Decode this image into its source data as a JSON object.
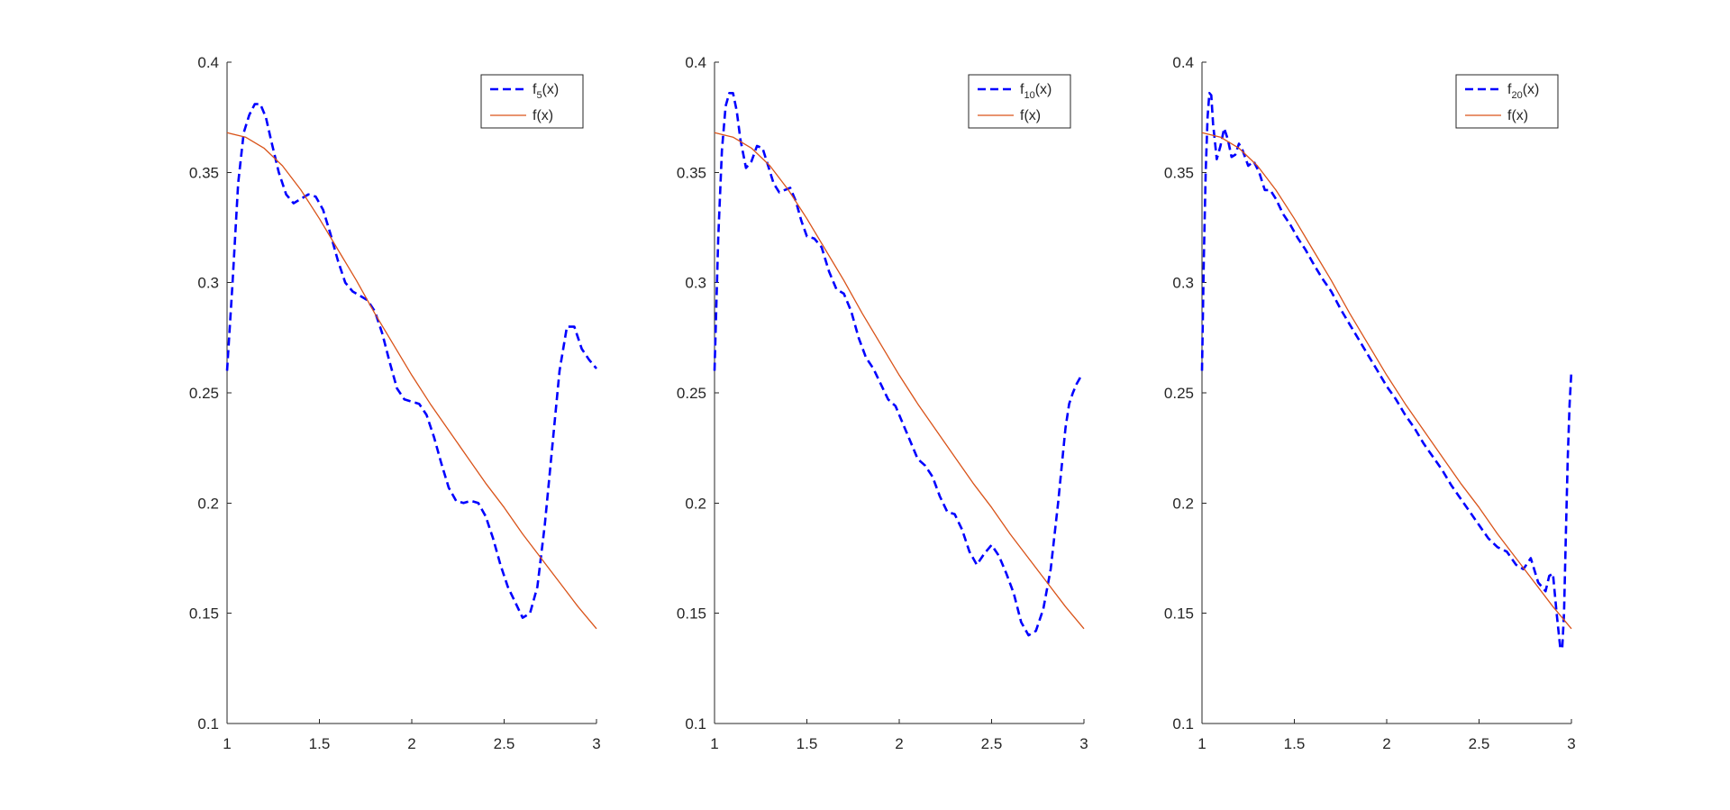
{
  "chart_data": [
    {
      "type": "line",
      "xlim": [
        1,
        3
      ],
      "ylim": [
        0.1,
        0.4
      ],
      "xticks": [
        "1",
        "1.5",
        "2",
        "2.5",
        "3"
      ],
      "yticks": [
        "0.1",
        "0.15",
        "0.2",
        "0.25",
        "0.3",
        "0.35",
        "0.4"
      ],
      "grid": false,
      "legend_position": "top-right",
      "series": [
        {
          "name": "f5(x)",
          "label_main": "f",
          "label_sub": "5",
          "label_tail": "(x)",
          "color": "#0000ff",
          "style": "dashed",
          "x": [
            1.0,
            1.03,
            1.06,
            1.09,
            1.12,
            1.15,
            1.18,
            1.21,
            1.24,
            1.28,
            1.32,
            1.36,
            1.4,
            1.44,
            1.48,
            1.52,
            1.56,
            1.6,
            1.64,
            1.68,
            1.72,
            1.76,
            1.8,
            1.84,
            1.88,
            1.92,
            1.96,
            2.0,
            2.04,
            2.08,
            2.12,
            2.16,
            2.2,
            2.24,
            2.28,
            2.32,
            2.36,
            2.4,
            2.44,
            2.48,
            2.52,
            2.56,
            2.6,
            2.64,
            2.68,
            2.72,
            2.76,
            2.8,
            2.84,
            2.88,
            2.92,
            2.96,
            3.0
          ],
          "y": [
            0.26,
            0.3,
            0.345,
            0.368,
            0.376,
            0.381,
            0.381,
            0.375,
            0.364,
            0.35,
            0.34,
            0.336,
            0.338,
            0.34,
            0.339,
            0.333,
            0.322,
            0.31,
            0.3,
            0.296,
            0.294,
            0.292,
            0.287,
            0.277,
            0.264,
            0.252,
            0.247,
            0.246,
            0.245,
            0.24,
            0.23,
            0.218,
            0.207,
            0.201,
            0.2,
            0.201,
            0.2,
            0.194,
            0.184,
            0.172,
            0.162,
            0.155,
            0.148,
            0.15,
            0.162,
            0.19,
            0.225,
            0.26,
            0.28,
            0.28,
            0.27,
            0.265,
            0.261
          ],
          "x_note": "",
          "y_note": ""
        },
        {
          "name": "f(x)",
          "label_main": "f(x)",
          "label_sub": "",
          "label_tail": "",
          "color": "#d95319",
          "style": "solid",
          "x": [
            1.0,
            1.1,
            1.2,
            1.3,
            1.4,
            1.5,
            1.6,
            1.7,
            1.8,
            1.9,
            2.0,
            2.1,
            2.2,
            2.3,
            2.4,
            2.5,
            2.6,
            2.7,
            2.8,
            2.9,
            3.0
          ],
          "y": [
            0.368,
            0.366,
            0.361,
            0.353,
            0.342,
            0.329,
            0.315,
            0.301,
            0.286,
            0.272,
            0.258,
            0.245,
            0.233,
            0.221,
            0.209,
            0.198,
            0.186,
            0.175,
            0.164,
            0.153,
            0.143
          ]
        }
      ]
    },
    {
      "type": "line",
      "xlim": [
        1,
        3
      ],
      "ylim": [
        0.1,
        0.4
      ],
      "xticks": [
        "1",
        "1.5",
        "2",
        "2.5",
        "3"
      ],
      "yticks": [
        "0.1",
        "0.15",
        "0.2",
        "0.25",
        "0.3",
        "0.35",
        "0.4"
      ],
      "grid": false,
      "legend_position": "top-right",
      "series": [
        {
          "name": "f10(x)",
          "label_main": "f",
          "label_sub": "10",
          "label_tail": "(x)",
          "color": "#0000ff",
          "style": "dashed",
          "x": [
            1.0,
            1.02,
            1.04,
            1.06,
            1.08,
            1.1,
            1.12,
            1.14,
            1.17,
            1.2,
            1.23,
            1.26,
            1.29,
            1.32,
            1.35,
            1.38,
            1.41,
            1.44,
            1.47,
            1.5,
            1.54,
            1.58,
            1.62,
            1.66,
            1.7,
            1.74,
            1.78,
            1.82,
            1.86,
            1.9,
            1.94,
            1.98,
            2.02,
            2.06,
            2.1,
            2.14,
            2.18,
            2.22,
            2.26,
            2.3,
            2.34,
            2.38,
            2.42,
            2.46,
            2.5,
            2.54,
            2.58,
            2.62,
            2.66,
            2.7,
            2.74,
            2.78,
            2.82,
            2.86,
            2.9,
            2.92,
            2.94,
            2.96,
            2.98,
            3.0
          ],
          "y": [
            0.26,
            0.32,
            0.36,
            0.38,
            0.386,
            0.386,
            0.378,
            0.365,
            0.352,
            0.355,
            0.362,
            0.361,
            0.353,
            0.345,
            0.341,
            0.342,
            0.343,
            0.337,
            0.328,
            0.321,
            0.32,
            0.316,
            0.305,
            0.297,
            0.295,
            0.287,
            0.275,
            0.266,
            0.261,
            0.254,
            0.247,
            0.244,
            0.236,
            0.228,
            0.22,
            0.217,
            0.212,
            0.203,
            0.196,
            0.195,
            0.188,
            0.178,
            0.172,
            0.177,
            0.181,
            0.176,
            0.168,
            0.159,
            0.146,
            0.14,
            0.142,
            0.152,
            0.17,
            0.2,
            0.234,
            0.245,
            0.25,
            0.254,
            0.257,
            0.258
          ]
        },
        {
          "name": "f(x)",
          "label_main": "f(x)",
          "label_sub": "",
          "label_tail": "",
          "color": "#d95319",
          "style": "solid",
          "x": [
            1.0,
            1.1,
            1.2,
            1.3,
            1.4,
            1.5,
            1.6,
            1.7,
            1.8,
            1.9,
            2.0,
            2.1,
            2.2,
            2.3,
            2.4,
            2.5,
            2.6,
            2.7,
            2.8,
            2.9,
            3.0
          ],
          "y": [
            0.368,
            0.366,
            0.361,
            0.353,
            0.342,
            0.329,
            0.315,
            0.301,
            0.286,
            0.272,
            0.258,
            0.245,
            0.233,
            0.221,
            0.209,
            0.198,
            0.186,
            0.175,
            0.164,
            0.153,
            0.143
          ]
        }
      ]
    },
    {
      "type": "line",
      "xlim": [
        1,
        3
      ],
      "ylim": [
        0.1,
        0.4
      ],
      "xticks": [
        "1",
        "1.5",
        "2",
        "2.5",
        "3"
      ],
      "yticks": [
        "0.1",
        "0.15",
        "0.2",
        "0.25",
        "0.3",
        "0.35",
        "0.4"
      ],
      "grid": false,
      "legend_position": "top-right",
      "series": [
        {
          "name": "f20(x)",
          "label_main": "f",
          "label_sub": "20",
          "label_tail": "(x)",
          "color": "#0000ff",
          "style": "dashed",
          "x": [
            1.0,
            1.01,
            1.02,
            1.03,
            1.04,
            1.05,
            1.06,
            1.08,
            1.1,
            1.12,
            1.14,
            1.16,
            1.18,
            1.2,
            1.22,
            1.25,
            1.28,
            1.31,
            1.34,
            1.37,
            1.4,
            1.44,
            1.48,
            1.52,
            1.56,
            1.6,
            1.65,
            1.7,
            1.75,
            1.8,
            1.85,
            1.9,
            1.95,
            2.0,
            2.05,
            2.1,
            2.15,
            2.2,
            2.25,
            2.3,
            2.35,
            2.4,
            2.45,
            2.5,
            2.55,
            2.6,
            2.65,
            2.7,
            2.74,
            2.78,
            2.82,
            2.86,
            2.88,
            2.9,
            2.92,
            2.94,
            2.95,
            2.96,
            2.97,
            2.98,
            2.99,
            3.0
          ],
          "y": [
            0.26,
            0.31,
            0.35,
            0.375,
            0.386,
            0.385,
            0.372,
            0.356,
            0.362,
            0.37,
            0.365,
            0.357,
            0.358,
            0.363,
            0.36,
            0.353,
            0.355,
            0.35,
            0.342,
            0.342,
            0.338,
            0.331,
            0.326,
            0.32,
            0.315,
            0.309,
            0.302,
            0.296,
            0.288,
            0.281,
            0.274,
            0.267,
            0.26,
            0.253,
            0.247,
            0.24,
            0.234,
            0.227,
            0.221,
            0.215,
            0.208,
            0.202,
            0.196,
            0.19,
            0.184,
            0.18,
            0.178,
            0.172,
            0.17,
            0.175,
            0.164,
            0.16,
            0.167,
            0.168,
            0.15,
            0.134,
            0.134,
            0.15,
            0.185,
            0.22,
            0.245,
            0.26
          ]
        },
        {
          "name": "f(x)",
          "label_main": "f(x)",
          "label_sub": "",
          "label_tail": "",
          "color": "#d95319",
          "style": "solid",
          "x": [
            1.0,
            1.1,
            1.2,
            1.3,
            1.4,
            1.5,
            1.6,
            1.7,
            1.8,
            1.9,
            2.0,
            2.1,
            2.2,
            2.3,
            2.4,
            2.5,
            2.6,
            2.7,
            2.8,
            2.9,
            3.0
          ],
          "y": [
            0.368,
            0.366,
            0.361,
            0.353,
            0.342,
            0.329,
            0.315,
            0.301,
            0.286,
            0.272,
            0.258,
            0.245,
            0.233,
            0.221,
            0.209,
            0.198,
            0.186,
            0.175,
            0.164,
            0.153,
            0.143
          ]
        }
      ]
    }
  ]
}
